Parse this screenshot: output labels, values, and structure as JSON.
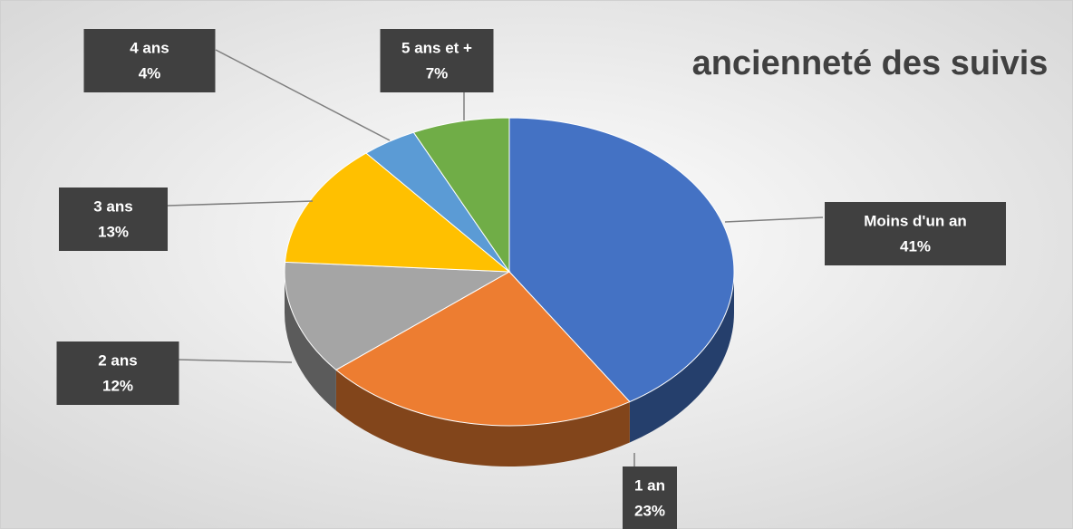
{
  "chart_data": {
    "type": "pie",
    "title": "ancienneté des suivis",
    "categories": [
      "Moins d'un an",
      "1 an",
      "2 ans",
      "3 ans",
      "4 ans",
      "5 ans et +"
    ],
    "values": [
      41,
      23,
      12,
      13,
      4,
      7
    ],
    "value_labels": [
      "41%",
      "23%",
      "12%",
      "13%",
      "4%",
      "7%"
    ],
    "colors": [
      "#4472c4",
      "#ed7d31",
      "#a5a5a5",
      "#ffc000",
      "#5b9bd5",
      "#70ad47"
    ]
  }
}
